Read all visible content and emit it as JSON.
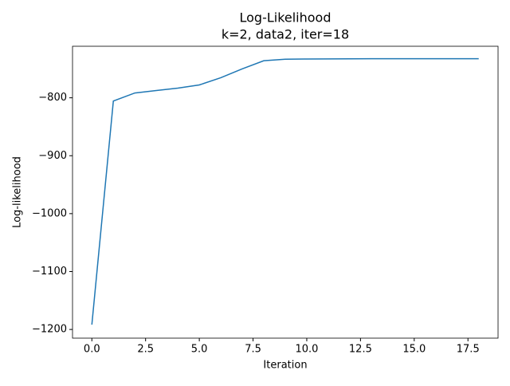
{
  "chart_data": {
    "type": "line",
    "title": "Log-Likelihood",
    "subtitle": "k=2, data2, iter=18",
    "x_label": "Iteration",
    "y_label": "Log-likelihood",
    "x": [
      0,
      1,
      2,
      3,
      4,
      5,
      6,
      7,
      8,
      9,
      10,
      11,
      12,
      13,
      14,
      15,
      16,
      17,
      18
    ],
    "series": [
      {
        "name": "Log-likelihood",
        "color": "#1f77b4",
        "values": [
          -1191.7,
          -805.6,
          -791.7,
          -787.5,
          -783.3,
          -777.8,
          -765.3,
          -750,
          -736,
          -733.3,
          -733,
          -732.8,
          -732.7,
          -732.6,
          -732.6,
          -732.6,
          -732.6,
          -732.6,
          -732.6
        ]
      }
    ],
    "xlim": [
      -0.9,
      18.9
    ],
    "xticks": [
      {
        "value": 0,
        "label": "0.0"
      },
      2.5,
      {
        "value": 5,
        "label": "5.0"
      },
      7.5,
      {
        "value": 10,
        "label": "10.0"
      },
      12.5,
      {
        "value": 15,
        "label": "15.0"
      },
      17.5
    ],
    "ylim": [
      -1215,
      -711
    ],
    "yticks": [
      {
        "value": -1200,
        "label": "−1200"
      },
      {
        "value": -1100,
        "label": "−1100"
      },
      {
        "value": -1000,
        "label": "−1000"
      },
      {
        "value": -900,
        "label": "−900"
      },
      {
        "value": -800,
        "label": "−800"
      }
    ],
    "grid": false
  }
}
